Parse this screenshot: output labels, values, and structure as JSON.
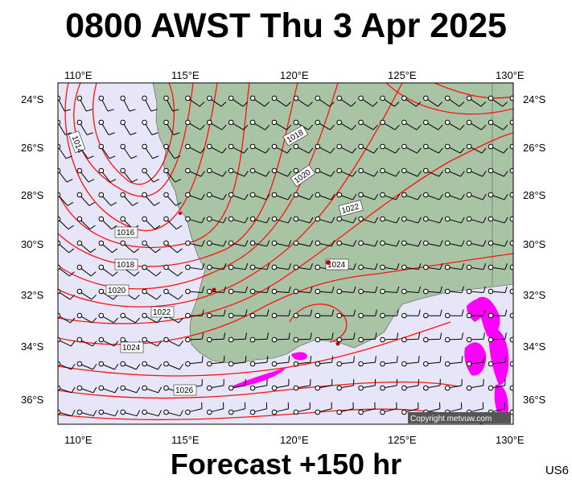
{
  "title": "0800 AWST Thu 3 Apr 2025",
  "footer": "Forecast +150 hr",
  "code": "US6",
  "copyright": "Copyright metvuw.com",
  "colors": {
    "ocean": "#e6e6f8",
    "land": "#a9c4a4",
    "isobar": "#ff1010",
    "rain": "#ff00ff",
    "barb": "#000000"
  },
  "map": {
    "lon_ticks": [
      "110°E",
      "115°E",
      "120°E",
      "125°E",
      "130°E"
    ],
    "lat_ticks": [
      "24°S",
      "26°S",
      "28°S",
      "30°S",
      "32°S",
      "34°S",
      "36°S"
    ],
    "isobar_labels": [
      "1014",
      "1016",
      "1018",
      "1020",
      "1022",
      "1024",
      "1018",
      "1020",
      "1022",
      "1024",
      "1026"
    ]
  }
}
